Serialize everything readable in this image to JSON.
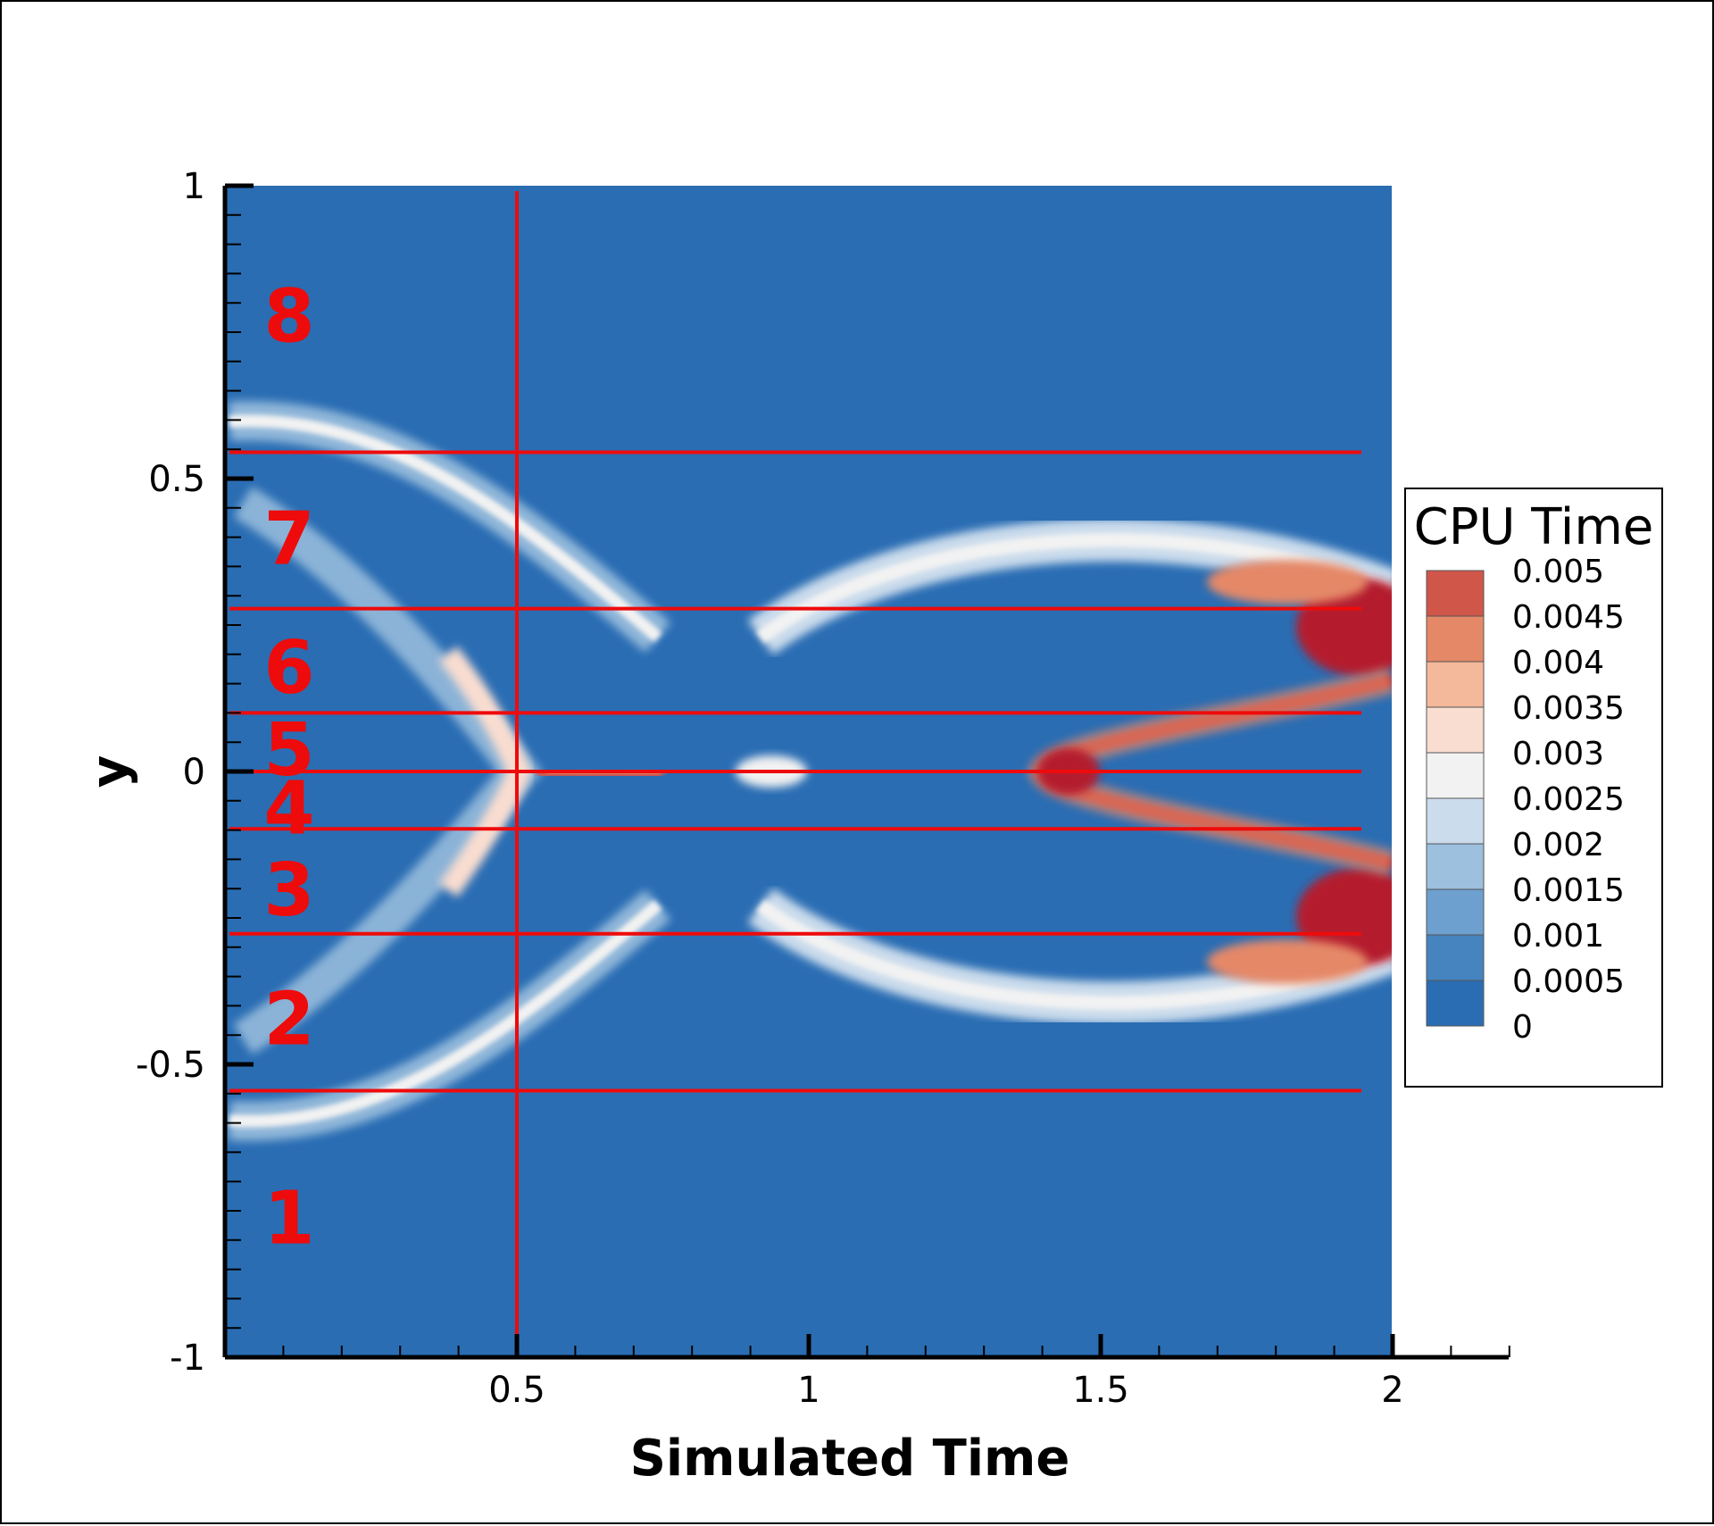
{
  "chart_data": {
    "type": "heatmap",
    "title": "",
    "xlabel": "Simulated Time",
    "ylabel": "y",
    "xlim": [
      0,
      2.2
    ],
    "ylim": [
      -1,
      1
    ],
    "plot_xmax": 2.0,
    "x_ticks": [
      0.5,
      1,
      1.5,
      2
    ],
    "x_tick_labels": [
      "0.5",
      "1",
      "1.5",
      "2"
    ],
    "y_ticks": [
      -1,
      -0.5,
      0,
      0.5,
      1
    ],
    "y_tick_labels": [
      "-1",
      "-0.5",
      "0",
      "0.5",
      "1"
    ],
    "colorbar": {
      "title": "CPU Time",
      "placement": "right",
      "levels": [
        0,
        0.0005,
        0.001,
        0.0015,
        0.002,
        0.0025,
        0.003,
        0.0035,
        0.004,
        0.0045,
        0.005
      ],
      "labels": [
        "0",
        "0.0005",
        "0.001",
        "0.0015",
        "0.002",
        "0.0025",
        "0.003",
        "0.0035",
        "0.004",
        "0.0045",
        "0.005"
      ],
      "colors": [
        "#2a6db3",
        "#4684c0",
        "#6da0cf",
        "#9cc0de",
        "#cbdcec",
        "#f2f2f2",
        "#f9ddd0",
        "#f4b89a",
        "#e58868",
        "#d0564a",
        "#b41f2e"
      ]
    },
    "partition": {
      "vertical_line_x": 0.5,
      "horizontal_lines_y": [
        0.545,
        0.278,
        0.1,
        0.0,
        -0.098,
        -0.277,
        -0.545
      ],
      "line_color": "#ee0b0b",
      "regions": [
        {
          "label": "8",
          "y": 0.78
        },
        {
          "label": "7",
          "y": 0.4
        },
        {
          "label": "6",
          "y": 0.18
        },
        {
          "label": "5",
          "y": 0.04
        },
        {
          "label": "4",
          "y": -0.06
        },
        {
          "label": "3",
          "y": -0.2
        },
        {
          "label": "2",
          "y": -0.42
        },
        {
          "label": "1",
          "y": -0.76
        }
      ]
    }
  }
}
